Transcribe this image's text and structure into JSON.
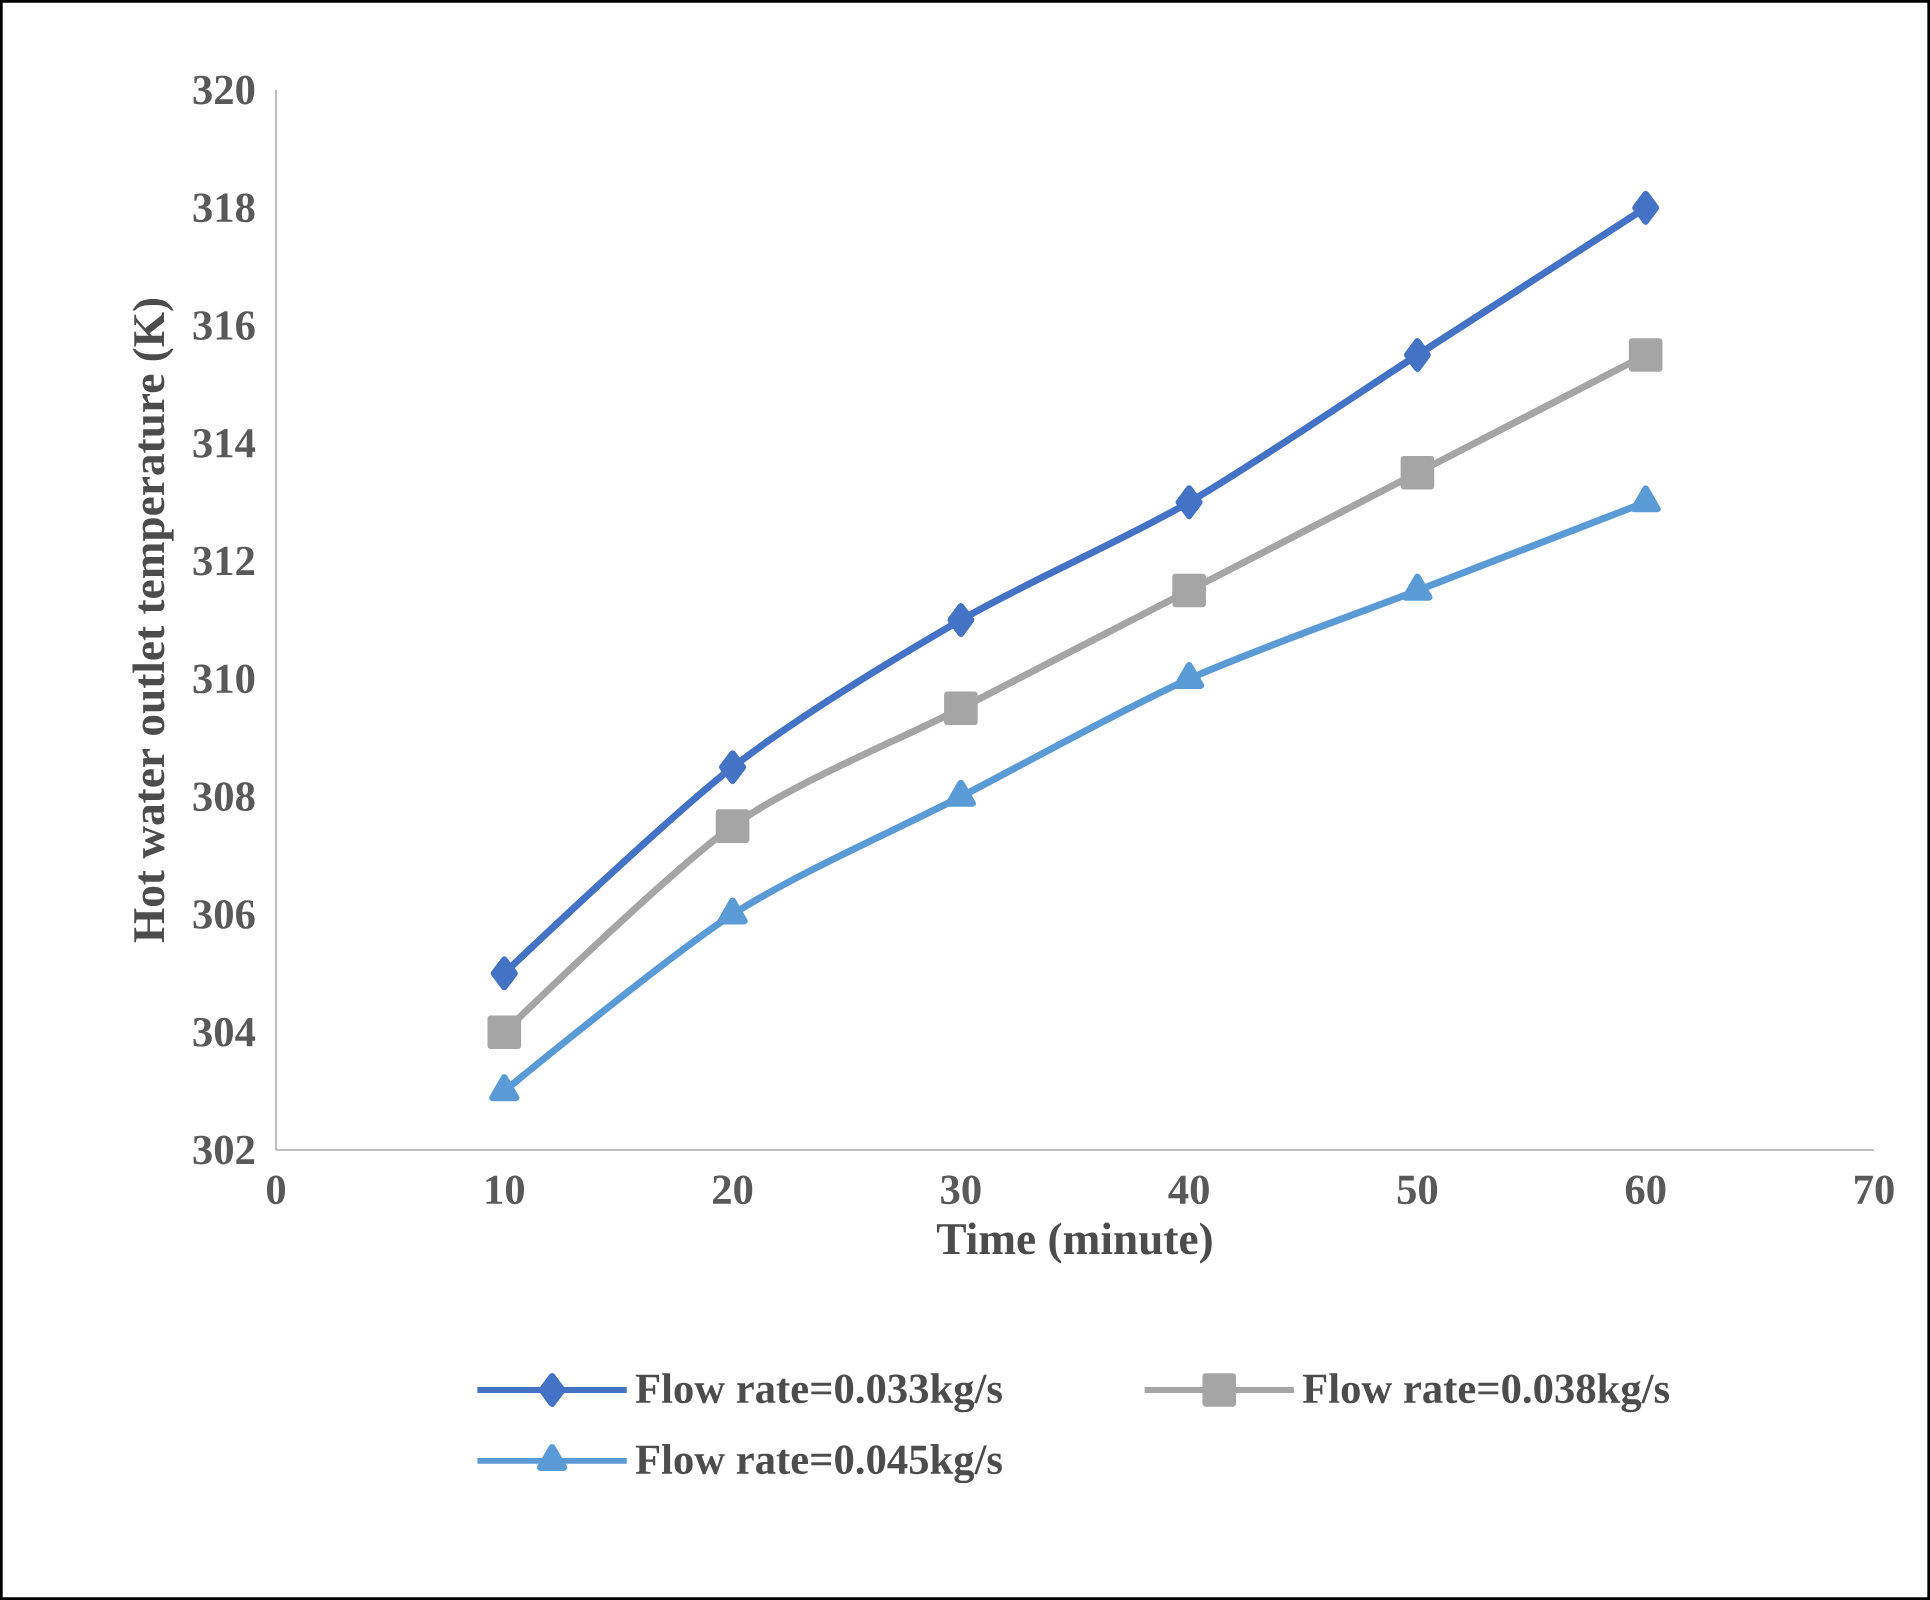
{
  "chart_data": {
    "type": "line",
    "xlabel": "Time (minute)",
    "ylabel": "Hot water outlet temperature (K)",
    "x": [
      10,
      20,
      30,
      40,
      50,
      60
    ],
    "series": [
      {
        "name": "Flow rate=0.033kg/s",
        "color": "#4472c4",
        "marker": "diamond",
        "values": [
          305,
          308.5,
          311,
          313,
          315.5,
          318
        ]
      },
      {
        "name": "Flow rate=0.038kg/s",
        "color": "#a5a5a5",
        "marker": "square",
        "values": [
          304,
          307.5,
          309.5,
          311.5,
          313.5,
          315.5
        ]
      },
      {
        "name": "Flow rate=0.045kg/s",
        "color": "#5b9bd5",
        "marker": "triangle",
        "values": [
          303,
          306,
          308,
          310,
          311.5,
          313
        ]
      }
    ],
    "xlim": [
      0,
      70
    ],
    "xticks": [
      0,
      10,
      20,
      30,
      40,
      50,
      60,
      70
    ],
    "ylim": [
      302,
      320
    ],
    "yticks": [
      302,
      304,
      306,
      308,
      310,
      312,
      314,
      316,
      318,
      320
    ],
    "grid": false,
    "legend": "bottom",
    "line_style": "solid"
  }
}
